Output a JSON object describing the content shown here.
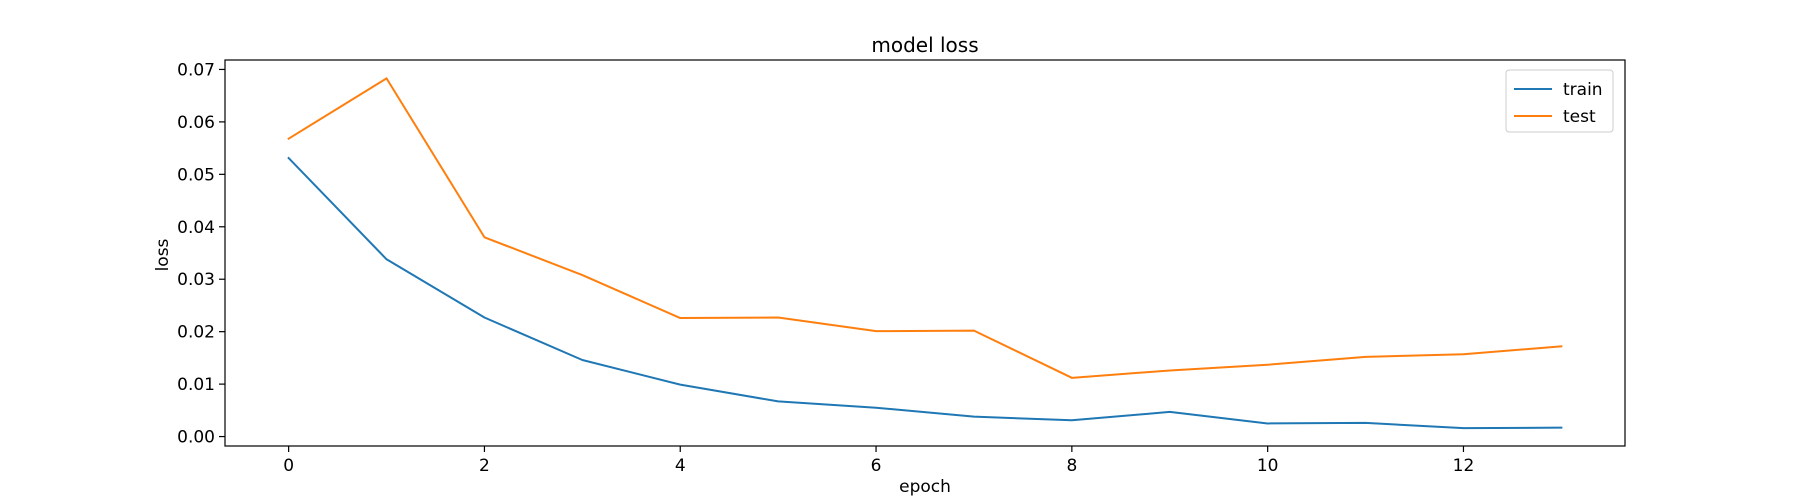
{
  "chart_data": {
    "type": "line",
    "title": "model loss",
    "xlabel": "epoch",
    "ylabel": "loss",
    "xlim": [
      -0.65,
      13.65
    ],
    "ylim": [
      -0.0018,
      0.0718
    ],
    "xticks": [
      0,
      2,
      4,
      6,
      8,
      10,
      12
    ],
    "yticks": [
      0.0,
      0.01,
      0.02,
      0.03,
      0.04,
      0.05,
      0.06,
      0.07
    ],
    "ytick_labels": [
      "0.00",
      "0.01",
      "0.02",
      "0.03",
      "0.04",
      "0.05",
      "0.06",
      "0.07"
    ],
    "x": [
      0,
      1,
      2,
      3,
      4,
      5,
      6,
      7,
      8,
      9,
      10,
      11,
      12,
      13
    ],
    "series": [
      {
        "name": "train",
        "color": "#1f77b4",
        "values": [
          0.0531,
          0.0338,
          0.0227,
          0.0146,
          0.0099,
          0.0067,
          0.0055,
          0.0038,
          0.0031,
          0.0047,
          0.0025,
          0.0026,
          0.0016,
          0.0017
        ]
      },
      {
        "name": "test",
        "color": "#ff7f0e",
        "values": [
          0.0568,
          0.0683,
          0.038,
          0.0308,
          0.0226,
          0.0227,
          0.0201,
          0.0202,
          0.0112,
          0.0126,
          0.0137,
          0.0152,
          0.0157,
          0.0172
        ]
      }
    ],
    "legend_position": "top-right",
    "grid": false
  }
}
